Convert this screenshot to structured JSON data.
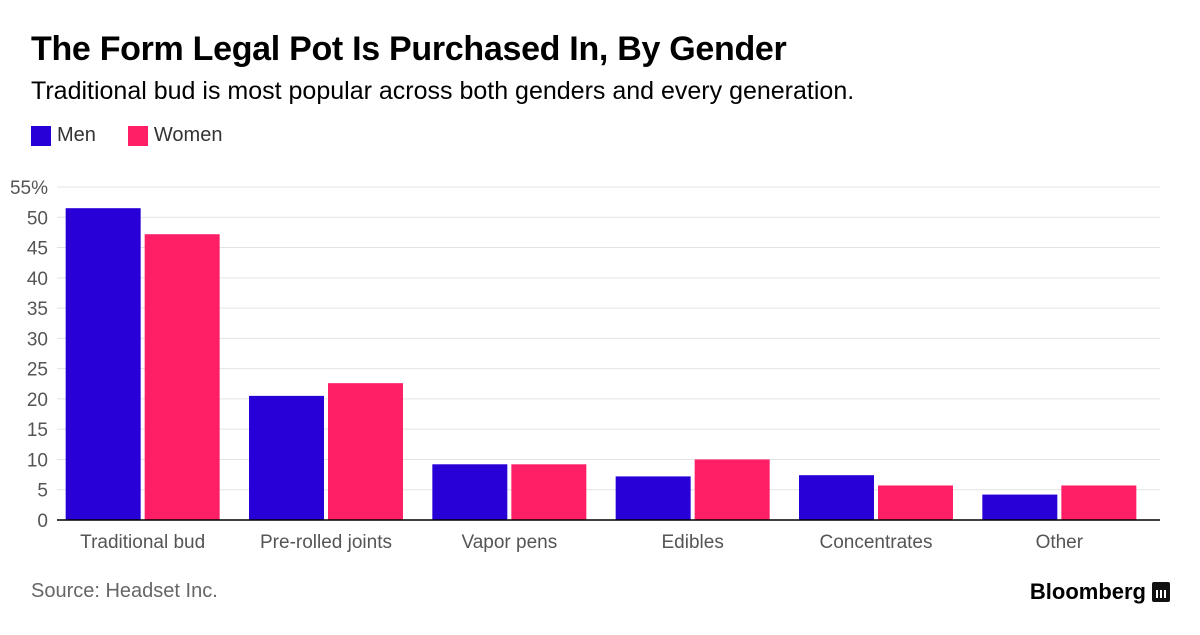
{
  "chart_data": {
    "type": "bar",
    "title": "The Form Legal Pot Is Purchased In, By Gender",
    "subtitle": "Traditional bud is most popular across both genders and every generation.",
    "categories": [
      "Traditional bud",
      "Pre-rolled joints",
      "Vapor pens",
      "Edibles",
      "Concentrates",
      "Other"
    ],
    "series": [
      {
        "name": "Men",
        "color": "#2800d7",
        "values": [
          51.5,
          20.5,
          9.2,
          7.2,
          7.4,
          4.2
        ]
      },
      {
        "name": "Women",
        "color": "#ff1f66",
        "values": [
          47.2,
          22.6,
          9.2,
          10.0,
          5.7,
          5.7
        ]
      }
    ],
    "ylim": [
      0,
      55
    ],
    "yticks": [
      0,
      5,
      10,
      15,
      20,
      25,
      30,
      35,
      40,
      45,
      50,
      55
    ],
    "ytick_labels": [
      "0",
      "5",
      "10",
      "15",
      "20",
      "25",
      "30",
      "35",
      "40",
      "45",
      "50",
      "55%"
    ],
    "grid": true,
    "legend_position": "top-left"
  },
  "footer": {
    "source": "Source: Headset Inc.",
    "brand": "Bloomberg"
  },
  "icons": {
    "brand_icon": "bloomberg-terminal-icon"
  }
}
